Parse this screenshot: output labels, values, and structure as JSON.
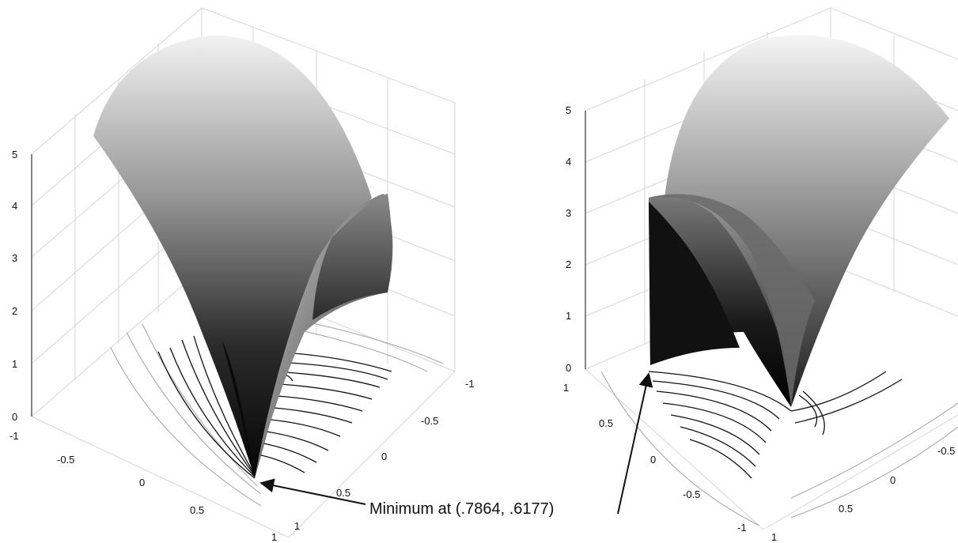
{
  "chart_data": [
    {
      "type": "surface",
      "view": "left",
      "z_ticks": [
        "0",
        "1",
        "2",
        "3",
        "4",
        "5"
      ],
      "x_ticks": [
        "-1",
        "-0.5",
        "0",
        "0.5",
        "1"
      ],
      "y_ticks": [
        "-1",
        "-0.5",
        "0",
        "0.5",
        "1"
      ],
      "zlim": [
        0,
        5
      ],
      "xlim": [
        -1,
        1
      ],
      "ylim": [
        -1,
        1
      ],
      "grid": true,
      "contours_on_base": true,
      "colormap": "gray"
    },
    {
      "type": "surface",
      "view": "right",
      "z_ticks": [
        "0",
        "1",
        "2",
        "3",
        "4",
        "5"
      ],
      "x_ticks": [
        "-1",
        "-0.5",
        "0",
        "0.5",
        "1"
      ],
      "y_ticks": [
        "1",
        "0.5",
        "0",
        "-0.5",
        "-1"
      ],
      "zlim": [
        0,
        5
      ],
      "xlim": [
        -1,
        1
      ],
      "ylim": [
        -1,
        1
      ],
      "grid": true,
      "contours_on_base": true,
      "colormap": "gray"
    }
  ],
  "annotation": {
    "text": "Minimum at (.7864, .6177)",
    "minimum": [
      0.7864,
      0.6177
    ]
  }
}
